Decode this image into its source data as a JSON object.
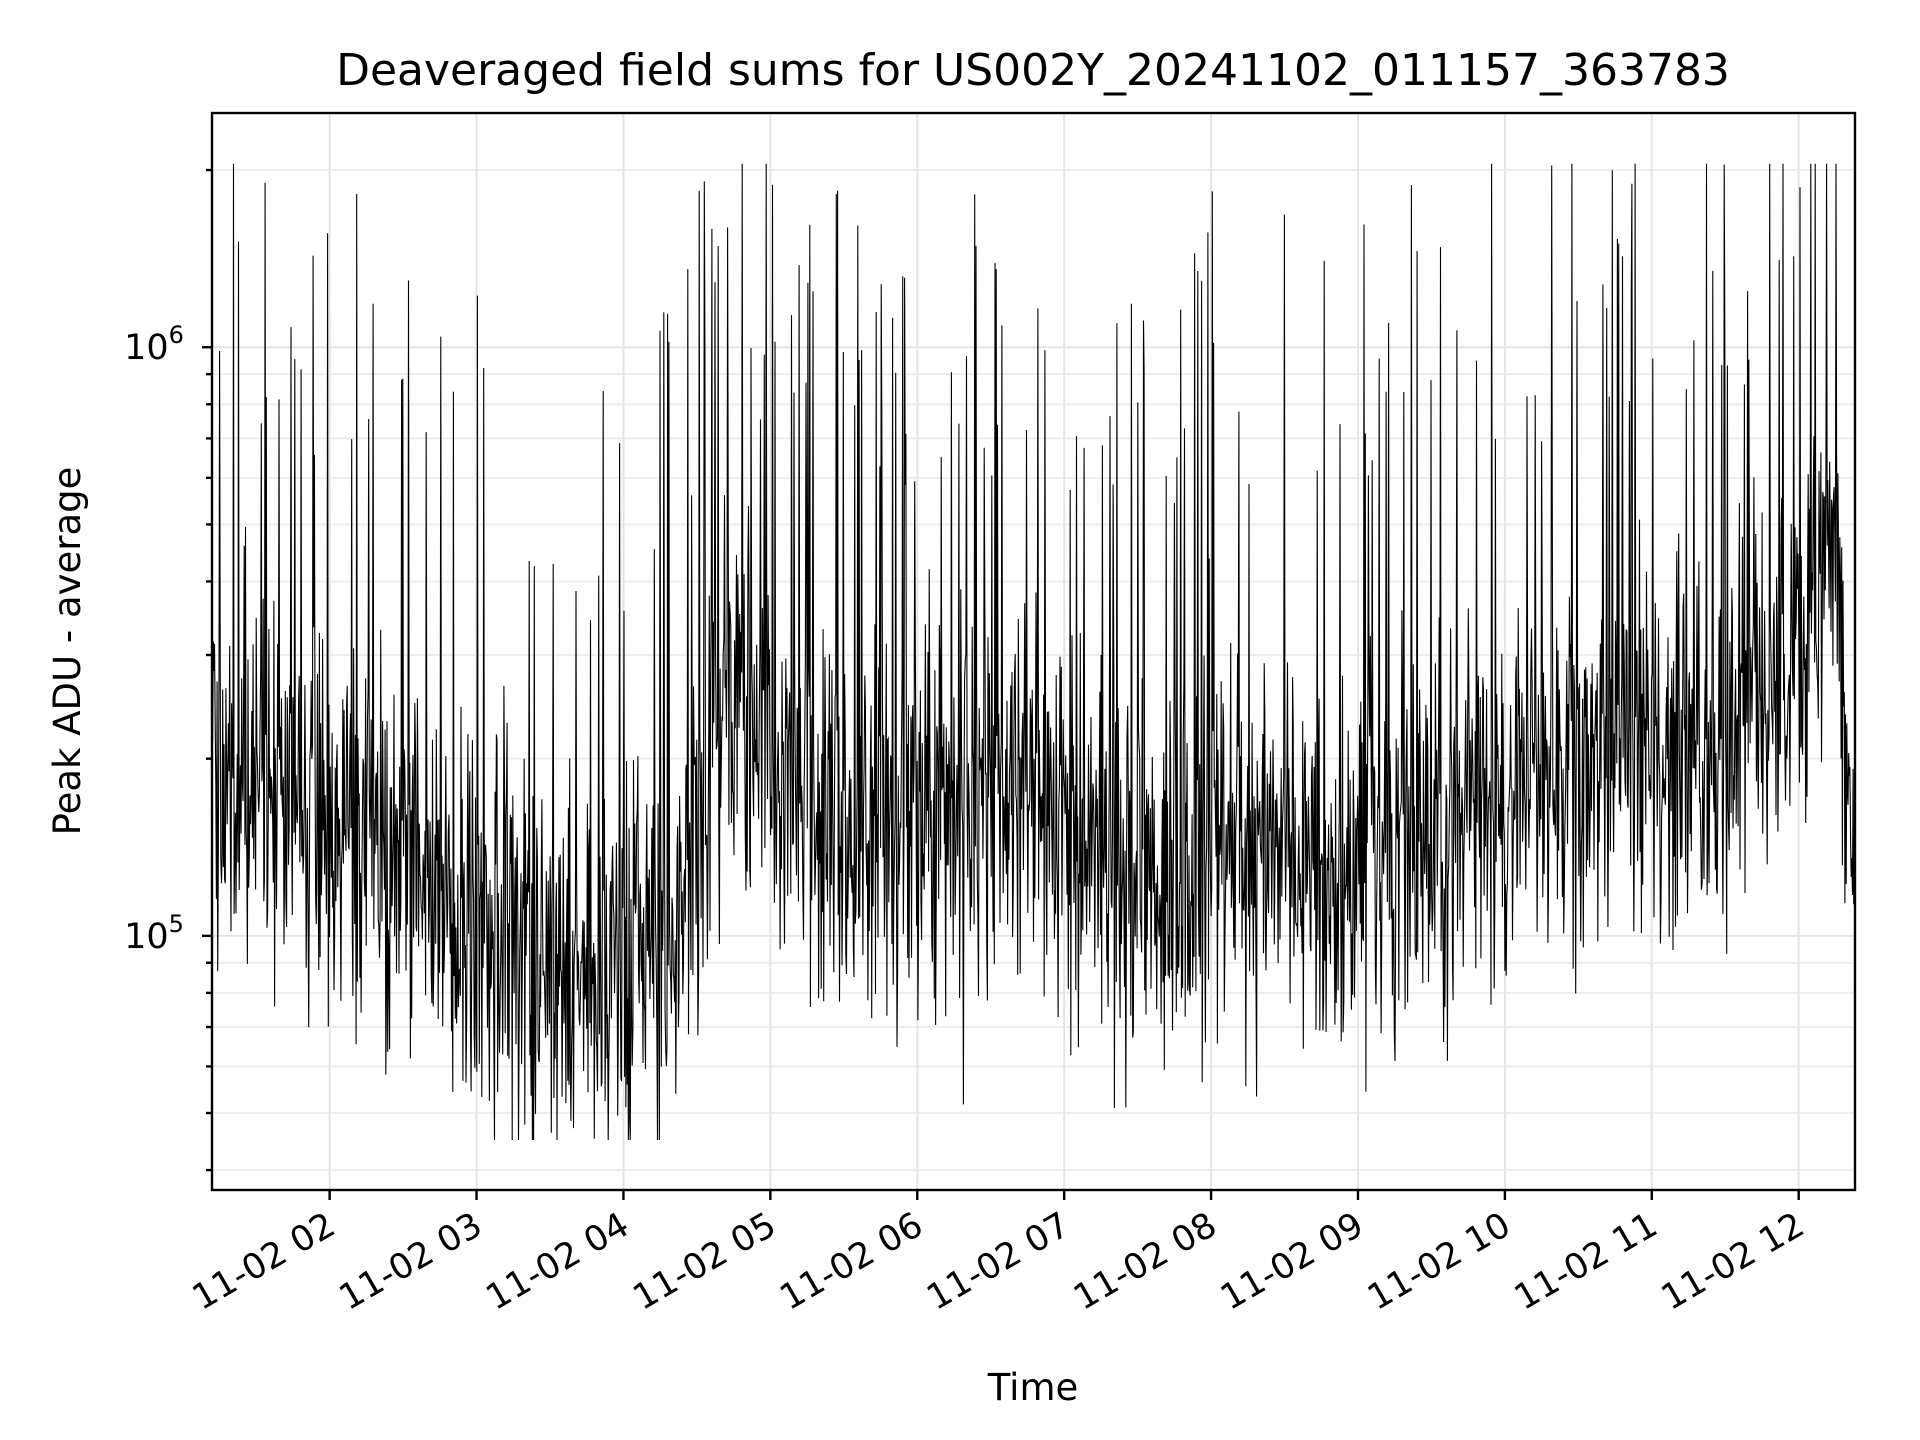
{
  "chart_data": {
    "type": "line",
    "title": "Deaveraged field sums for US002Y_20241102_011157_363783",
    "xlabel": "Time",
    "ylabel": "Peak ADU - average",
    "yscale": "log",
    "ylim": [
      37000,
      2500000
    ],
    "xlim": [
      "2024-11-02 01:11:57",
      "2024-11-02 12:23:00"
    ],
    "x_ticks": [
      {
        "time": "2024-11-02 02:00",
        "label": "11-02 02"
      },
      {
        "time": "2024-11-02 03:00",
        "label": "11-02 03"
      },
      {
        "time": "2024-11-02 04:00",
        "label": "11-02 04"
      },
      {
        "time": "2024-11-02 05:00",
        "label": "11-02 05"
      },
      {
        "time": "2024-11-02 06:00",
        "label": "11-02 06"
      },
      {
        "time": "2024-11-02 07:00",
        "label": "11-02 07"
      },
      {
        "time": "2024-11-02 08:00",
        "label": "11-02 08"
      },
      {
        "time": "2024-11-02 09:00",
        "label": "11-02 09"
      },
      {
        "time": "2024-11-02 10:00",
        "label": "11-02 10"
      },
      {
        "time": "2024-11-02 11:00",
        "label": "11-02 11"
      },
      {
        "time": "2024-11-02 12:00",
        "label": "11-02 12"
      }
    ],
    "y_ticks": [
      {
        "value": 100000,
        "base": "10",
        "exp": "5"
      },
      {
        "value": 1000000,
        "base": "10",
        "exp": "6"
      }
    ],
    "grid": true,
    "series": [
      {
        "color": "#000000",
        "trend": [
          {
            "time": "2024-11-02 01:12",
            "value": 210000
          },
          {
            "time": "2024-11-02 01:30",
            "value": 190000
          },
          {
            "time": "2024-11-02 02:00",
            "value": 150000
          },
          {
            "time": "2024-11-02 02:30",
            "value": 140000
          },
          {
            "time": "2024-11-02 03:00",
            "value": 105000
          },
          {
            "time": "2024-11-02 03:30",
            "value": 90000
          },
          {
            "time": "2024-11-02 04:00",
            "value": 95000
          },
          {
            "time": "2024-11-02 04:20",
            "value": 100000
          },
          {
            "time": "2024-11-02 04:40",
            "value": 260000
          },
          {
            "time": "2024-11-02 05:00",
            "value": 200000
          },
          {
            "time": "2024-11-02 05:30",
            "value": 150000
          },
          {
            "time": "2024-11-02 06:00",
            "value": 160000
          },
          {
            "time": "2024-11-02 06:30",
            "value": 170000
          },
          {
            "time": "2024-11-02 07:00",
            "value": 160000
          },
          {
            "time": "2024-11-02 07:30",
            "value": 120000
          },
          {
            "time": "2024-11-02 08:00",
            "value": 150000
          },
          {
            "time": "2024-11-02 08:30",
            "value": 140000
          },
          {
            "time": "2024-11-02 09:00",
            "value": 130000
          },
          {
            "time": "2024-11-02 09:30",
            "value": 160000
          },
          {
            "time": "2024-11-02 10:00",
            "value": 180000
          },
          {
            "time": "2024-11-02 10:30",
            "value": 200000
          },
          {
            "time": "2024-11-02 11:00",
            "value": 220000
          },
          {
            "time": "2024-11-02 11:30",
            "value": 210000
          },
          {
            "time": "2024-11-02 12:00",
            "value": 320000
          },
          {
            "time": "2024-11-02 12:15",
            "value": 550000
          },
          {
            "time": "2024-11-02 12:23",
            "value": 120000
          }
        ],
        "min_value": 45000,
        "max_value": 2050000
      }
    ]
  }
}
